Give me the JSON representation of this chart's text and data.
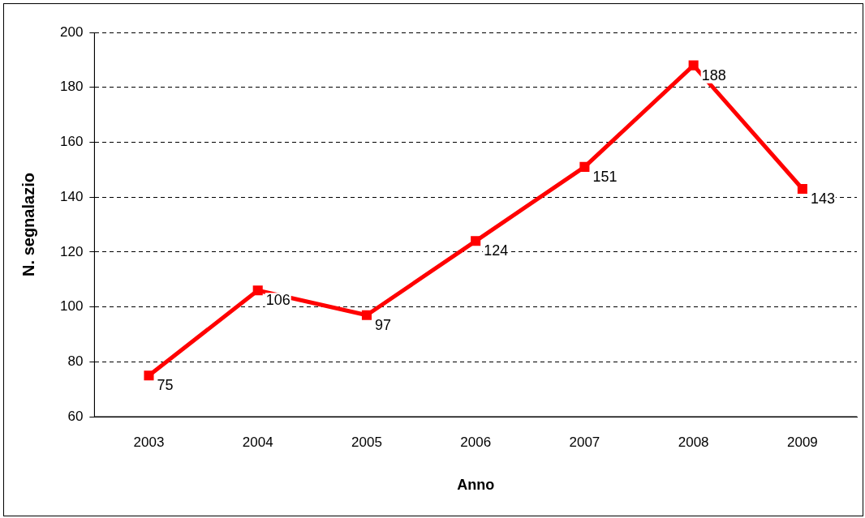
{
  "chart_data": {
    "type": "line",
    "xlabel": "Anno",
    "ylabel": "N. segnalazio",
    "categories": [
      "2003",
      "2004",
      "2005",
      "2006",
      "2007",
      "2008",
      "2009"
    ],
    "series": [
      {
        "color": "#ff0000",
        "values": [
          75,
          106,
          97,
          124,
          151,
          188,
          143
        ]
      }
    ],
    "ylim": [
      60,
      200
    ],
    "yticks": [
      60,
      80,
      100,
      120,
      140,
      160,
      180,
      200
    ],
    "grid": "y",
    "legend": false,
    "marker": "square",
    "line_style": "solid",
    "data_labels": true
  }
}
